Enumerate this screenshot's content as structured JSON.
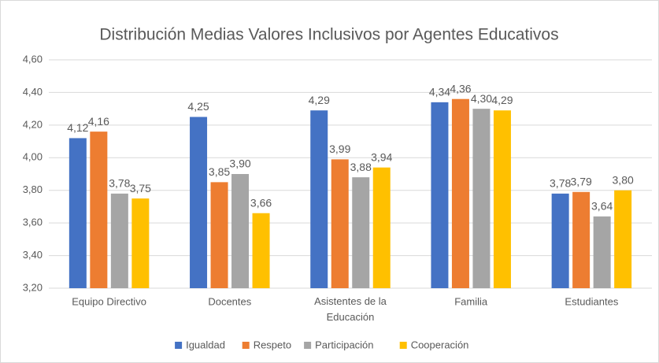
{
  "chart_data": {
    "type": "bar",
    "title": "Distribución Medias Valores Inclusivos por Agentes Educativos",
    "categories": [
      "Equipo Directivo",
      "Docentes",
      "Asistentes de la Educación",
      "Familia",
      "Estudiantes"
    ],
    "series": [
      {
        "name": "Igualdad",
        "color": "#4472c4",
        "values": [
          4.12,
          4.25,
          4.29,
          4.34,
          3.78
        ],
        "value_labels": [
          "4,12",
          "4,25",
          "4,29",
          "4,34",
          "3,78"
        ]
      },
      {
        "name": "Respeto",
        "color": "#ed7d31",
        "values": [
          4.16,
          3.85,
          3.99,
          4.36,
          3.79
        ],
        "value_labels": [
          "4,16",
          "3,85",
          "3,99",
          "4,36",
          "3,79"
        ]
      },
      {
        "name": "Participación",
        "color": "#a5a5a5",
        "values": [
          3.78,
          3.9,
          3.88,
          4.3,
          3.64
        ],
        "value_labels": [
          "3,78",
          "3,90",
          "3,88",
          "4,30",
          "3,64"
        ]
      },
      {
        "name": "Cooperación",
        "color": "#ffc000",
        "values": [
          3.75,
          3.66,
          3.94,
          4.29,
          3.8
        ],
        "value_labels": [
          "3,75",
          "3,66",
          "3,94",
          "4,29",
          "3,80"
        ]
      }
    ],
    "ylim": [
      3.2,
      4.6
    ],
    "yticks": [
      {
        "value": 3.2,
        "label": "3,20"
      },
      {
        "value": 3.4,
        "label": "3,40"
      },
      {
        "value": 3.6,
        "label": "3,60"
      },
      {
        "value": 3.8,
        "label": "3,80"
      },
      {
        "value": 4.0,
        "label": "4,00"
      },
      {
        "value": 4.2,
        "label": "4,20"
      },
      {
        "value": 4.4,
        "label": "4,40"
      },
      {
        "value": 4.6,
        "label": "4,60"
      }
    ],
    "grid": true,
    "legend": "bottom"
  }
}
